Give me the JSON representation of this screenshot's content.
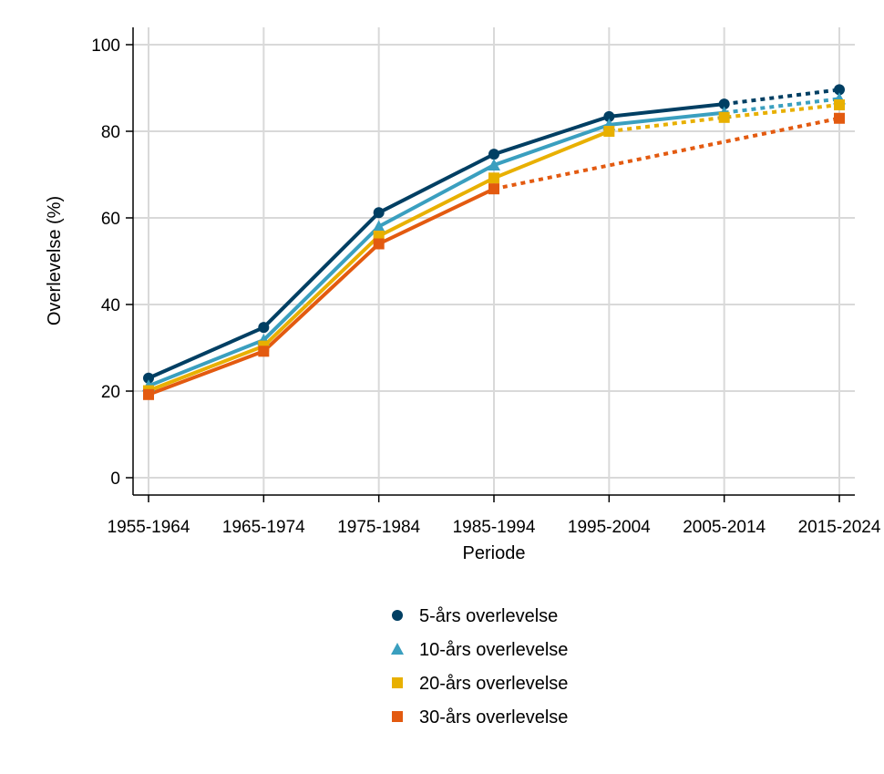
{
  "chart_data": {
    "type": "line",
    "title": "",
    "xlabel": "Periode",
    "ylabel": "Overlevelse (%)",
    "categories": [
      "1955-1964",
      "1965-1974",
      "1975-1984",
      "1985-1994",
      "1995-2004",
      "2005-2014",
      "2015-2024"
    ],
    "yticks": [
      0,
      20,
      40,
      60,
      80,
      100
    ],
    "ylim": [
      -4,
      104
    ],
    "grid": true,
    "legend_position": "bottom",
    "series": [
      {
        "name": "5-års overlevelse",
        "color": "#003f63",
        "marker": "circle",
        "values": [
          23.0,
          34.7,
          61.2,
          74.7,
          83.4,
          86.3,
          89.6
        ],
        "dotted_from_index": 5
      },
      {
        "name": "10-års overlevelse",
        "color": "#3a9fbf",
        "marker": "triangle",
        "values": [
          21.2,
          31.8,
          58.0,
          72.2,
          81.5,
          84.3,
          87.5
        ],
        "dotted_from_index": 5
      },
      {
        "name": "20-års overlevelse",
        "color": "#e8b000",
        "marker": "square",
        "values": [
          20.1,
          30.4,
          55.8,
          69.2,
          80.0,
          83.2,
          86.1
        ],
        "dotted_from_index": 4
      },
      {
        "name": "30-års overlevelse",
        "color": "#e35a10",
        "marker": "square",
        "values": [
          19.2,
          29.2,
          54.0,
          66.7,
          null,
          null,
          83.0
        ],
        "dotted_from_index": 3
      }
    ]
  }
}
